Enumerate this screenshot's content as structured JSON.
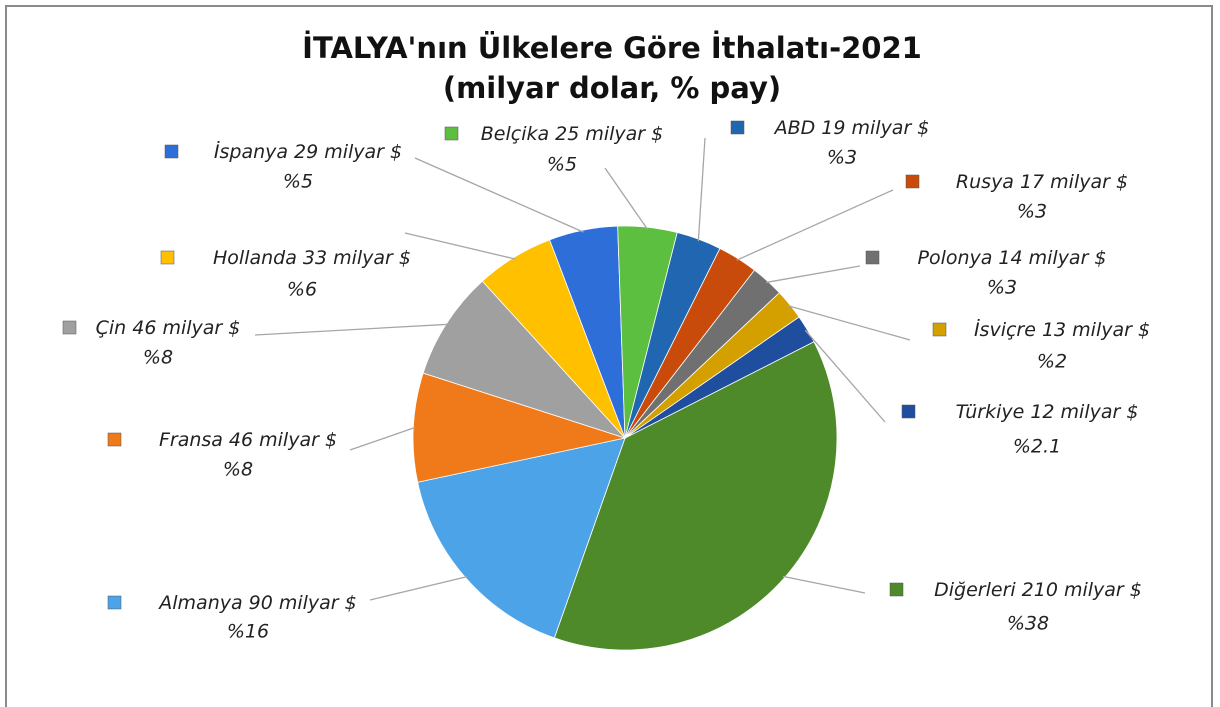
{
  "chart_data": {
    "type": "pie",
    "title": "İTALYA'nın Ülkelere Göre İthalatı-2021",
    "subtitle": "(milyar dolar, % pay)",
    "categories": [
      "Diğerleri",
      "Almanya",
      "Fransa",
      "Çin",
      "Hollanda",
      "İspanya",
      "Belçika",
      "ABD",
      "Rusya",
      "Polonya",
      "İsviçre",
      "Türkiye"
    ],
    "values": [
      210,
      90,
      46,
      46,
      33,
      29,
      25,
      19,
      17,
      14,
      13,
      12
    ],
    "value_labels": [
      "210 milyar $",
      "90 milyar $",
      "46 milyar $",
      "46 milyar $",
      "33 milyar $",
      "29 milyar $",
      "25 milyar $",
      "19 milyar $",
      "17 milyar $",
      "14 milyar $",
      "13 milyar $",
      "12 milyar $"
    ],
    "percents": [
      38,
      16,
      8,
      8,
      6,
      5,
      5,
      3,
      3,
      3,
      2,
      2.1
    ],
    "percent_labels": [
      "%38",
      "%16",
      "%8",
      "%8",
      "%6",
      "%5",
      "%5",
      "%3",
      "%3",
      "%3",
      "%2",
      "%2.1"
    ],
    "colors": [
      "#4e8a2a",
      "#4da3e8",
      "#f07a1a",
      "#a0a0a0",
      "#ffc000",
      "#2e6ed8",
      "#5cbf3f",
      "#2066b0",
      "#c84b0c",
      "#707070",
      "#d4a000",
      "#1f4e9e"
    ]
  }
}
